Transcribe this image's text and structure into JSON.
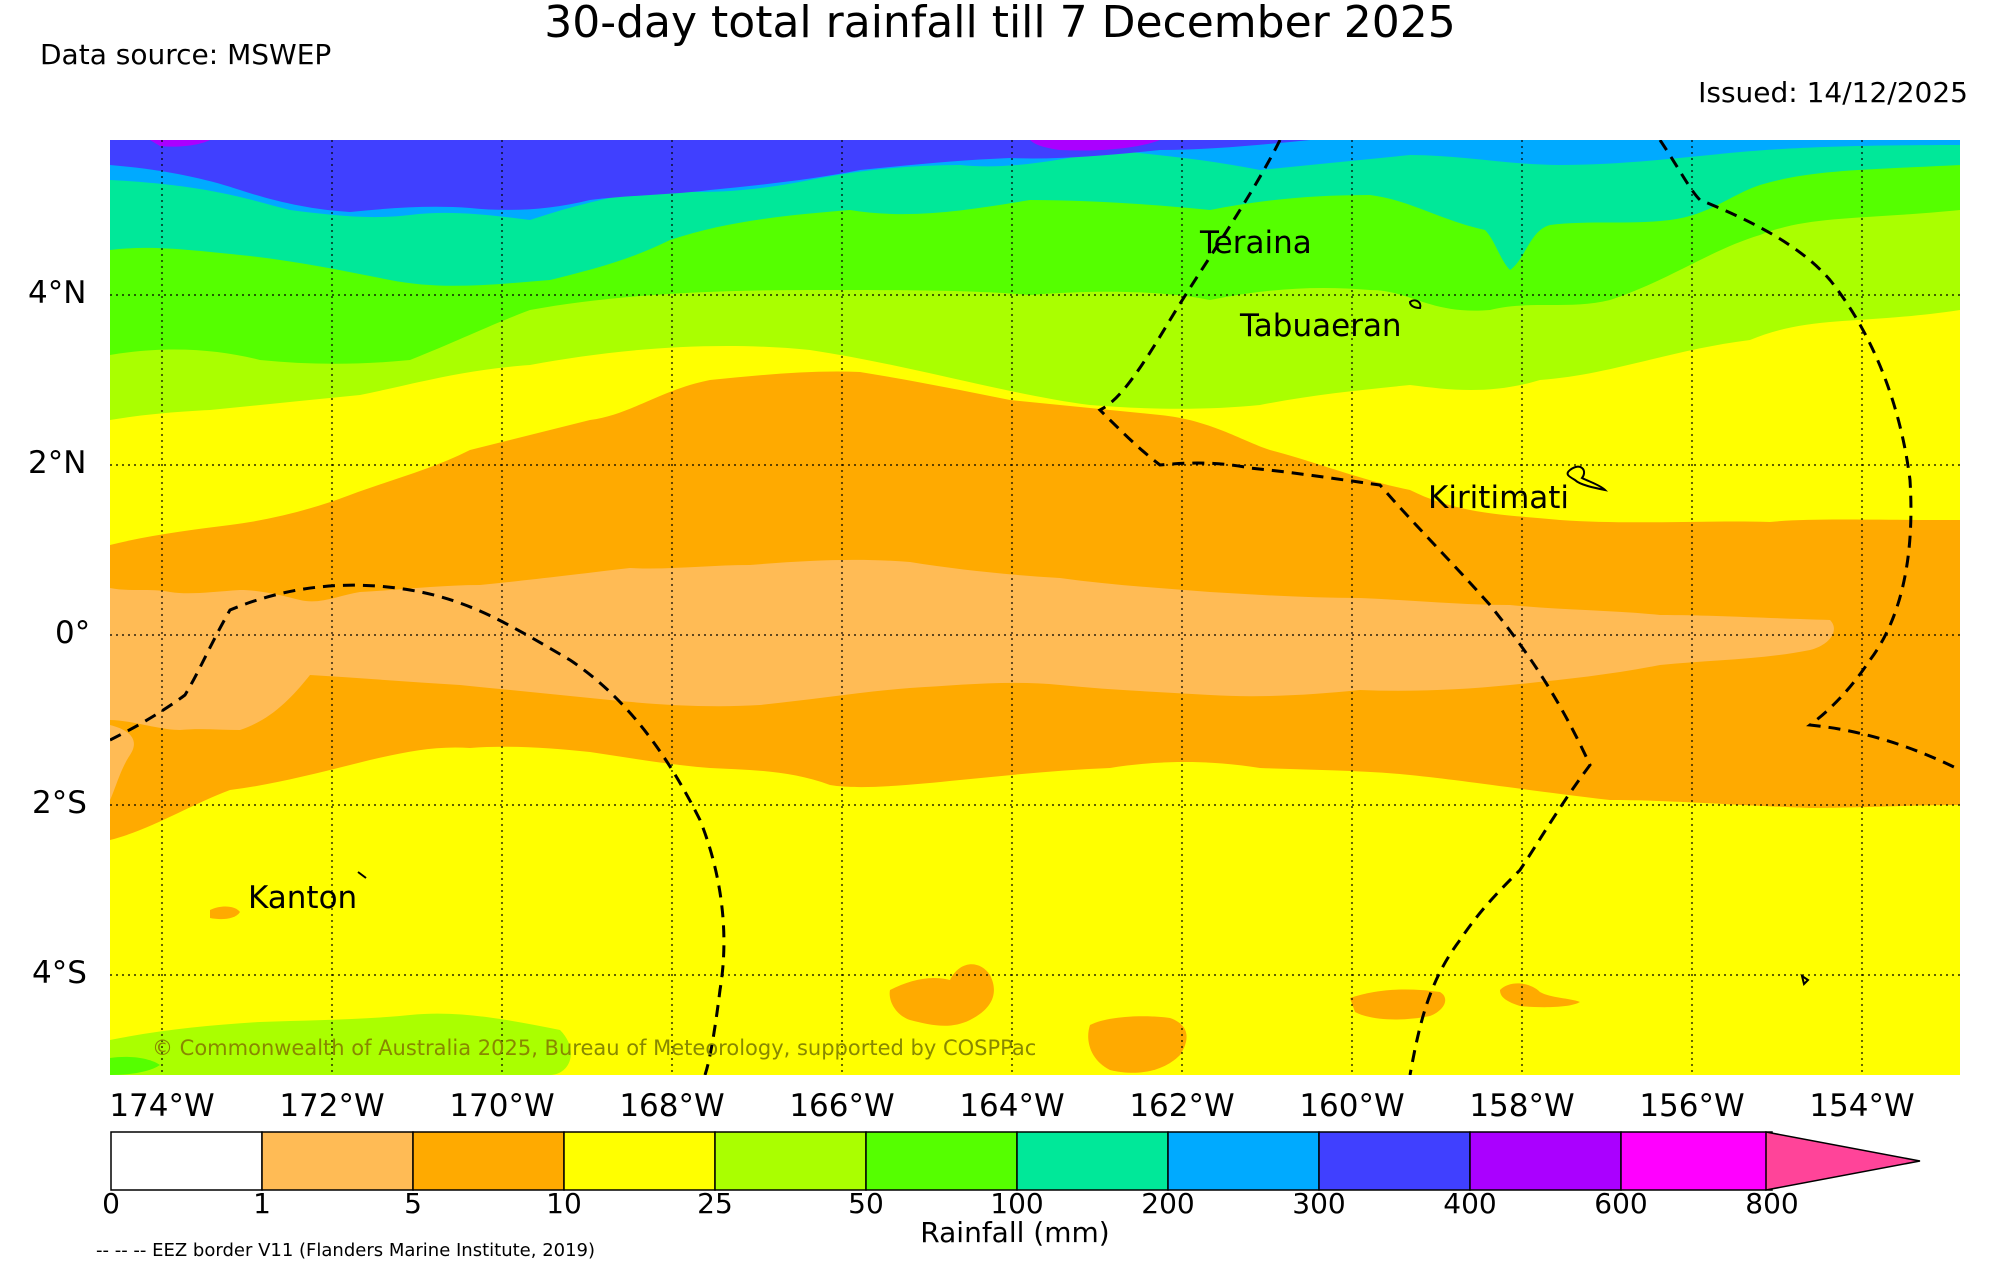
{
  "header": {
    "title": "30-day total rainfall till 7 December 2025",
    "source": "Data source: MSWEP",
    "issued": "Issued: 14/12/2025"
  },
  "axes": {
    "lat_labels": [
      "4°N",
      "2°N",
      "0°",
      "2°S",
      "4°S"
    ],
    "lon_labels": [
      "174°W",
      "172°W",
      "170°W",
      "168°W",
      "166°W",
      "164°W",
      "162°W",
      "160°W",
      "158°W",
      "156°W",
      "154°W"
    ]
  },
  "places": {
    "teraina": "Teraina",
    "tabuaeran": "Tabuaeran",
    "kiritimati": "Kiritimati",
    "kanton": "Kanton"
  },
  "copyright": "© Commonwealth of Australia 2025, Bureau of Meteorology, supported by COSPPac",
  "colorbar": {
    "ticks": [
      "0",
      "1",
      "5",
      "10",
      "25",
      "50",
      "100",
      "200",
      "300",
      "400",
      "600",
      "800"
    ],
    "colors": [
      "#ffffff",
      "#ffbb55",
      "#ffaa00",
      "#ffff00",
      "#aaff00",
      "#55ff00",
      "#00e899",
      "#00aaff",
      "#4040ff",
      "#aa00ff",
      "#ff00ff",
      "#ff4499"
    ],
    "label": "Rainfall (mm)"
  },
  "legend_note": "-- -- -- EEZ border V11 (Flanders Marine Institute, 2019)"
}
